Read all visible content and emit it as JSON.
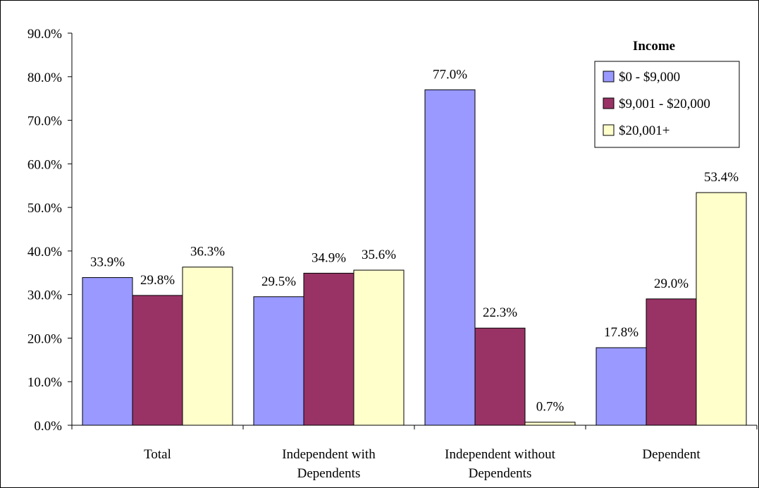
{
  "chart_data": {
    "type": "bar",
    "categories": [
      [
        "Total"
      ],
      [
        "Independent with",
        "Dependents"
      ],
      [
        "Independent without",
        "Dependents"
      ],
      [
        "Dependent"
      ]
    ],
    "series": [
      {
        "name": "$0 - $9,000",
        "color": "#9999ff",
        "values": [
          33.9,
          29.5,
          77.0,
          17.8
        ]
      },
      {
        "name": "$9,001 - $20,000",
        "color": "#993366",
        "values": [
          29.8,
          34.9,
          22.3,
          29.0
        ]
      },
      {
        "name": "$20,001+",
        "color": "#ffffcc",
        "values": [
          36.3,
          35.6,
          0.7,
          53.4
        ]
      }
    ],
    "legend_title": "Income",
    "legend_position": "top-right",
    "ylim": [
      0,
      90
    ],
    "ytick_step": 10,
    "ytick_labels": [
      "0.0%",
      "10.0%",
      "20.0%",
      "30.0%",
      "40.0%",
      "50.0%",
      "60.0%",
      "70.0%",
      "80.0%",
      "90.0%"
    ],
    "data_labels": [
      [
        "33.9%",
        "29.5%",
        "77.0%",
        "17.8%"
      ],
      [
        "29.8%",
        "34.9%",
        "22.3%",
        "29.0%"
      ],
      [
        "36.3%",
        "35.6%",
        "0.7%",
        "53.4%"
      ]
    ],
    "grid": false
  }
}
